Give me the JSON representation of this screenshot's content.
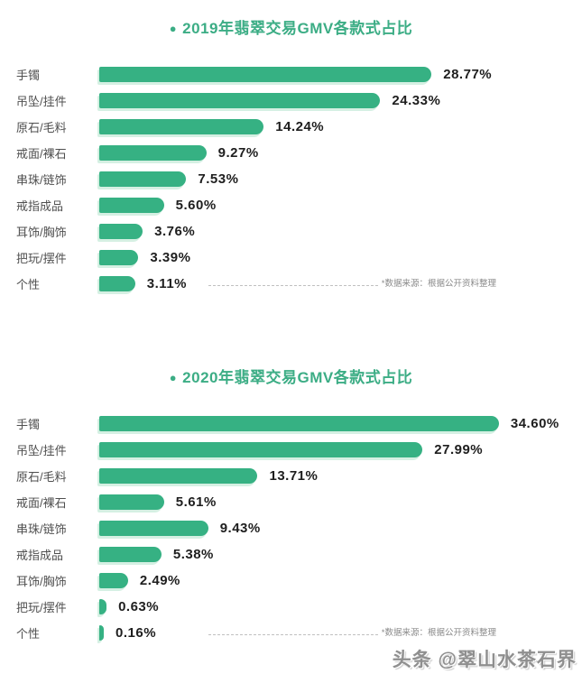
{
  "chart_data": [
    {
      "type": "bar",
      "orientation": "horizontal",
      "bullet": "●",
      "title": "2019年翡翠交易GMV各款式占比",
      "categories": [
        "手镯",
        "吊坠/挂件",
        "原石/毛料",
        "戒面/裸石",
        "串珠/链饰",
        "戒指成品",
        "耳饰/胸饰",
        "把玩/摆件",
        "个性"
      ],
      "values": [
        28.77,
        24.33,
        14.24,
        9.27,
        7.53,
        5.6,
        3.76,
        3.39,
        3.11
      ],
      "value_labels": [
        "28.77%",
        "24.33%",
        "14.24%",
        "9.27%",
        "7.53%",
        "5.60%",
        "3.76%",
        "3.39%",
        "3.11%"
      ],
      "source_note": "*数据来源：根据公开资料整理",
      "xlim": [
        0,
        36
      ],
      "grid": false,
      "legend": "none"
    },
    {
      "type": "bar",
      "orientation": "horizontal",
      "bullet": "●",
      "title": "2020年翡翠交易GMV各款式占比",
      "categories": [
        "手镯",
        "吊坠/挂件",
        "原石/毛料",
        "戒面/裸石",
        "串珠/链饰",
        "戒指成品",
        "耳饰/胸饰",
        "把玩/摆件",
        "个性"
      ],
      "values": [
        34.6,
        27.99,
        13.71,
        5.61,
        9.43,
        5.38,
        2.49,
        0.63,
        0.16
      ],
      "value_labels": [
        "34.60%",
        "27.99%",
        "13.71%",
        "5.61%",
        "9.43%",
        "5.38%",
        "2.49%",
        "0.63%",
        "0.16%"
      ],
      "source_note": "*数据来源：根据公开资料整理",
      "xlim": [
        0,
        36
      ],
      "grid": false,
      "legend": "none"
    }
  ],
  "watermark": "头条 @翠山水茶石界",
  "colors": {
    "bar": "#36b183",
    "bar_halo": "#d5f0e3",
    "title": "#3cad85",
    "category_text": "#4f4f4f",
    "value_text": "#1e1e1e",
    "note_text": "#8a8a8a",
    "watermark_text": "#8f8f8f",
    "background": "#ffffff"
  }
}
